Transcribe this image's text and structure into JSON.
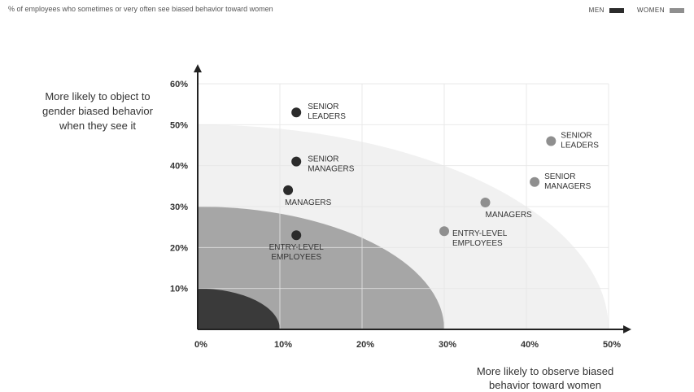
{
  "chart_data": {
    "type": "scatter",
    "subtitle": "% of employees who sometimes or very often see biased behavior toward women",
    "xlabel": "More likely to observe biased behavior toward women",
    "ylabel": "More likely to object to gender biased behavior when they see it",
    "xlim": [
      0,
      50
    ],
    "ylim": [
      0,
      60
    ],
    "x_ticks": [
      "0%",
      "10%",
      "20%",
      "30%",
      "40%",
      "50%"
    ],
    "y_ticks": [
      "10%",
      "20%",
      "30%",
      "40%",
      "50%",
      "60%"
    ],
    "grid": true,
    "legend": [
      {
        "label": "MEN",
        "color": "#2b2b2b"
      },
      {
        "label": "WOMEN",
        "color": "#8f8f8f"
      }
    ],
    "bands": [
      {
        "radius": 50,
        "color": "#f1f1f1"
      },
      {
        "radius": 30,
        "color": "#a6a6a6"
      },
      {
        "radius": 10,
        "color": "#3a3a3a"
      }
    ],
    "series": [
      {
        "name": "MEN",
        "color": "#2b2b2b",
        "points": [
          {
            "label": "SENIOR LEADERS",
            "x": 12,
            "y": 53
          },
          {
            "label": "SENIOR MANAGERS",
            "x": 12,
            "y": 41
          },
          {
            "label": "MANAGERS",
            "x": 11,
            "y": 34
          },
          {
            "label": "ENTRY-LEVEL EMPLOYEES",
            "x": 12,
            "y": 23
          }
        ]
      },
      {
        "name": "WOMEN",
        "color": "#8f8f8f",
        "points": [
          {
            "label": "SENIOR LEADERS",
            "x": 43,
            "y": 46
          },
          {
            "label": "SENIOR MANAGERS",
            "x": 41,
            "y": 36
          },
          {
            "label": "MANAGERS",
            "x": 35,
            "y": 31
          },
          {
            "label": "ENTRY-LEVEL EMPLOYEES",
            "x": 30,
            "y": 24
          }
        ]
      }
    ]
  }
}
